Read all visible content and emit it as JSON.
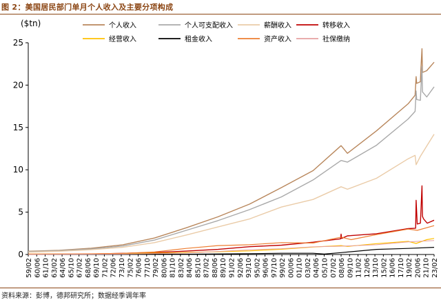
{
  "figure_title": "图 2：美国居民部门单月个人收入及主要分项构成",
  "source_note": "资料来源：彭博，德邦研究所；数据经季调年率",
  "chart_data": {
    "type": "line",
    "title": "",
    "ylabel": "($tn)",
    "xlabel": "",
    "ylim": [
      0,
      25
    ],
    "yticks": [
      0,
      5,
      10,
      15,
      20,
      25
    ],
    "grid": false,
    "legend_position": "top",
    "x_start": "59/02",
    "x_end": "23/02",
    "x_tick_labels": [
      "59/02",
      "60/06",
      "61/10",
      "63/02",
      "64/06",
      "65/10",
      "67/02",
      "68/06",
      "69/10",
      "71/02",
      "72/06",
      "73/10",
      "75/02",
      "76/06",
      "77/10",
      "79/02",
      "80/06",
      "81/10",
      "83/02",
      "84/06",
      "85/10",
      "87/02",
      "88/06",
      "89/10",
      "91/02",
      "92/06",
      "93/10",
      "95/02",
      "96/06",
      "97/10",
      "99/02",
      "00/06",
      "01/10",
      "03/02",
      "04/06",
      "05/10",
      "07/02",
      "08/06",
      "09/10",
      "11/02",
      "12/06",
      "13/10",
      "15/02",
      "16/06",
      "17/10",
      "19/02",
      "20/06",
      "21/10",
      "23/02"
    ],
    "series": [
      {
        "name": "个人收入",
        "color": "#b8865b",
        "width": 1.4,
        "points": [
          [
            "59/02",
            0.38
          ],
          [
            "64/01",
            0.5
          ],
          [
            "69/01",
            0.74
          ],
          [
            "74/01",
            1.15
          ],
          [
            "79/01",
            1.95
          ],
          [
            "84/01",
            3.15
          ],
          [
            "89/01",
            4.45
          ],
          [
            "94/01",
            5.95
          ],
          [
            "99/01",
            7.9
          ],
          [
            "04/01",
            9.9
          ],
          [
            "08/06",
            12.85
          ],
          [
            "09/06",
            11.95
          ],
          [
            "14/01",
            14.6
          ],
          [
            "19/01",
            17.8
          ],
          [
            "20/02",
            18.8
          ],
          [
            "20/04",
            21.0
          ],
          [
            "20/05",
            20.2
          ],
          [
            "20/12",
            20.4
          ],
          [
            "21/01",
            21.9
          ],
          [
            "21/03",
            24.3
          ],
          [
            "21/04",
            21.5
          ],
          [
            "21/12",
            21.7
          ],
          [
            "23/02",
            22.7
          ]
        ]
      },
      {
        "name": "个人可支配收入",
        "color": "#a9a9a9",
        "width": 1.4,
        "points": [
          [
            "59/02",
            0.34
          ],
          [
            "64/01",
            0.45
          ],
          [
            "69/01",
            0.65
          ],
          [
            "74/01",
            1.0
          ],
          [
            "79/01",
            1.7
          ],
          [
            "84/01",
            2.85
          ],
          [
            "89/01",
            4.0
          ],
          [
            "94/01",
            5.3
          ],
          [
            "99/01",
            6.8
          ],
          [
            "04/01",
            8.8
          ],
          [
            "08/06",
            11.1
          ],
          [
            "09/06",
            10.9
          ],
          [
            "14/01",
            12.9
          ],
          [
            "19/01",
            16.0
          ],
          [
            "20/02",
            16.9
          ],
          [
            "20/04",
            19.3
          ],
          [
            "20/05",
            18.3
          ],
          [
            "20/12",
            18.2
          ],
          [
            "21/01",
            19.6
          ],
          [
            "21/03",
            22.2
          ],
          [
            "21/04",
            19.2
          ],
          [
            "21/12",
            18.6
          ],
          [
            "23/02",
            19.8
          ]
        ]
      },
      {
        "name": "薪酬收入",
        "color": "#eacba7",
        "width": 1.4,
        "points": [
          [
            "59/02",
            0.28
          ],
          [
            "64/01",
            0.38
          ],
          [
            "69/01",
            0.56
          ],
          [
            "74/01",
            0.85
          ],
          [
            "79/01",
            1.4
          ],
          [
            "84/01",
            2.3
          ],
          [
            "89/01",
            3.25
          ],
          [
            "94/01",
            4.2
          ],
          [
            "99/01",
            5.6
          ],
          [
            "04/01",
            6.5
          ],
          [
            "08/06",
            8.0
          ],
          [
            "09/06",
            7.7
          ],
          [
            "14/01",
            9.0
          ],
          [
            "19/01",
            11.3
          ],
          [
            "20/02",
            11.7
          ],
          [
            "20/04",
            10.6
          ],
          [
            "20/12",
            11.6
          ],
          [
            "21/12",
            12.8
          ],
          [
            "23/02",
            14.2
          ]
        ]
      },
      {
        "name": "转移收入",
        "color": "#c00000",
        "width": 1.4,
        "points": [
          [
            "59/02",
            0.03
          ],
          [
            "69/01",
            0.06
          ],
          [
            "74/01",
            0.14
          ],
          [
            "79/01",
            0.24
          ],
          [
            "84/01",
            0.4
          ],
          [
            "89/01",
            0.6
          ],
          [
            "94/01",
            0.92
          ],
          [
            "99/01",
            1.1
          ],
          [
            "04/01",
            1.45
          ],
          [
            "08/05",
            1.85
          ],
          [
            "08/06",
            2.4
          ],
          [
            "08/07",
            1.9
          ],
          [
            "09/06",
            2.2
          ],
          [
            "14/01",
            2.45
          ],
          [
            "19/01",
            3.05
          ],
          [
            "20/03",
            3.1
          ],
          [
            "20/04",
            6.4
          ],
          [
            "20/06",
            3.6
          ],
          [
            "20/12",
            3.7
          ],
          [
            "21/01",
            5.0
          ],
          [
            "21/03",
            8.1
          ],
          [
            "21/04",
            4.5
          ],
          [
            "21/06",
            4.2
          ],
          [
            "22/01",
            3.7
          ],
          [
            "23/02",
            4.05
          ]
        ]
      },
      {
        "name": "经营收入",
        "color": "#ffc000",
        "width": 1.2,
        "points": [
          [
            "59/02",
            0.05
          ],
          [
            "74/01",
            0.09
          ],
          [
            "84/01",
            0.24
          ],
          [
            "94/01",
            0.42
          ],
          [
            "99/01",
            0.62
          ],
          [
            "04/01",
            0.88
          ],
          [
            "08/06",
            1.05
          ],
          [
            "09/06",
            0.95
          ],
          [
            "14/01",
            1.28
          ],
          [
            "19/01",
            1.55
          ],
          [
            "20/04",
            1.3
          ],
          [
            "21/12",
            1.75
          ],
          [
            "23/02",
            1.9
          ]
        ]
      },
      {
        "name": "租金收入",
        "color": "#000000",
        "width": 1.2,
        "points": [
          [
            "59/02",
            0.02
          ],
          [
            "84/01",
            0.03
          ],
          [
            "94/01",
            0.1
          ],
          [
            "99/01",
            0.15
          ],
          [
            "04/01",
            0.15
          ],
          [
            "05/10",
            0.06
          ],
          [
            "08/06",
            0.22
          ],
          [
            "14/01",
            0.6
          ],
          [
            "19/01",
            0.72
          ],
          [
            "23/02",
            0.85
          ]
        ]
      },
      {
        "name": "资产收入",
        "color": "#ed7d31",
        "width": 1.2,
        "points": [
          [
            "59/02",
            0.04
          ],
          [
            "69/01",
            0.08
          ],
          [
            "74/01",
            0.14
          ],
          [
            "79/01",
            0.3
          ],
          [
            "84/01",
            0.72
          ],
          [
            "89/01",
            1.05
          ],
          [
            "94/01",
            1.15
          ],
          [
            "99/01",
            1.4
          ],
          [
            "04/01",
            1.35
          ],
          [
            "08/06",
            2.05
          ],
          [
            "10/01",
            1.75
          ],
          [
            "14/01",
            2.35
          ],
          [
            "19/01",
            3.0
          ],
          [
            "20/06",
            2.85
          ],
          [
            "23/02",
            3.4
          ]
        ]
      },
      {
        "name": "社保缴纳",
        "color": "#e6a0a0",
        "width": 1.0,
        "points": [
          [
            "59/02",
            0.01
          ],
          [
            "74/01",
            0.05
          ],
          [
            "84/01",
            0.17
          ],
          [
            "94/01",
            0.55
          ],
          [
            "99/01",
            0.68
          ],
          [
            "04/01",
            0.9
          ],
          [
            "08/06",
            0.98
          ],
          [
            "14/01",
            1.15
          ],
          [
            "19/01",
            1.48
          ],
          [
            "23/02",
            1.65
          ]
        ]
      }
    ]
  }
}
